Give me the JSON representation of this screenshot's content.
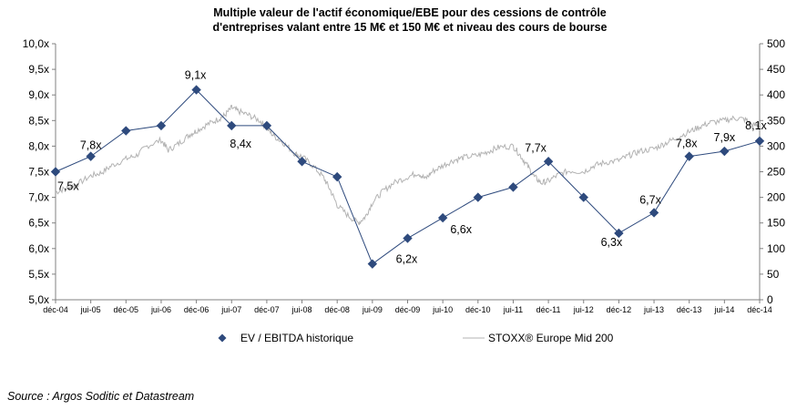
{
  "chart_data": {
    "type": "line",
    "title_line1": "Multiple valeur de l'actif économique/EBE pour des cessions de contrôle",
    "title_line2": "d'entreprises valant entre 15 M€ et 150 M€ et niveau des cours de bourse",
    "x_categories": [
      "déc-04",
      "jui-05",
      "déc-05",
      "jui-06",
      "déc-06",
      "jui-07",
      "déc-07",
      "jui-08",
      "déc-08",
      "jui-09",
      "déc-09",
      "jui-10",
      "déc-10",
      "jui-11",
      "déc-11",
      "jui-12",
      "déc-12",
      "jui-13",
      "déc-13",
      "jui-14",
      "déc-14"
    ],
    "y_left": {
      "min": 5.0,
      "max": 10.0,
      "step": 0.5,
      "ticks": [
        "5,0x",
        "5,5x",
        "6,0x",
        "6,5x",
        "7,0x",
        "7,5x",
        "8,0x",
        "8,5x",
        "9,0x",
        "9,5x",
        "10,0x"
      ]
    },
    "y_right": {
      "min": 0,
      "max": 500,
      "step": 50,
      "ticks": [
        "0",
        "50",
        "100",
        "150",
        "200",
        "250",
        "300",
        "350",
        "400",
        "450",
        "500"
      ]
    },
    "series": [
      {
        "name": "EV / EBITDA historique",
        "axis": "left",
        "color": "#2e4a7d",
        "marker": "diamond",
        "values": [
          7.5,
          7.8,
          8.3,
          8.4,
          9.1,
          8.4,
          8.4,
          7.7,
          7.4,
          5.7,
          6.2,
          6.6,
          7.0,
          7.2,
          7.7,
          7.0,
          6.3,
          6.7,
          7.8,
          7.9,
          8.1
        ],
        "data_labels": [
          {
            "index": 0,
            "text": "7,5x"
          },
          {
            "index": 1,
            "text": "7,8x"
          },
          {
            "index": 4,
            "text": "9,1x"
          },
          {
            "index": 5,
            "text": "8,4x"
          },
          {
            "index": 10,
            "text": "6,2x"
          },
          {
            "index": 11,
            "text": "6,6x"
          },
          {
            "index": 14,
            "text": "7,7x"
          },
          {
            "index": 16,
            "text": "6,3x"
          },
          {
            "index": 17,
            "text": "6,7x"
          },
          {
            "index": 18,
            "text": "7,8x"
          },
          {
            "index": 19,
            "text": "7,9x"
          },
          {
            "index": 20,
            "text": "8,1x"
          }
        ]
      },
      {
        "name": "STOXX® Europe Mid 200",
        "axis": "right",
        "color": "#b3b3b3",
        "anchors": [
          [
            0,
            210
          ],
          [
            0.3,
            218
          ],
          [
            0.6,
            225
          ],
          [
            1,
            242
          ],
          [
            1.3,
            248
          ],
          [
            1.6,
            262
          ],
          [
            2,
            275
          ],
          [
            2.3,
            282
          ],
          [
            2.6,
            300
          ],
          [
            3,
            312
          ],
          [
            3.2,
            292
          ],
          [
            3.5,
            305
          ],
          [
            3.8,
            322
          ],
          [
            4,
            330
          ],
          [
            4.3,
            342
          ],
          [
            4.6,
            352
          ],
          [
            4.8,
            360
          ],
          [
            5,
            375
          ],
          [
            5.2,
            368
          ],
          [
            5.5,
            360
          ],
          [
            5.8,
            350
          ],
          [
            6,
            335
          ],
          [
            6.2,
            320
          ],
          [
            6.5,
            305
          ],
          [
            6.8,
            285
          ],
          [
            7,
            280
          ],
          [
            7.3,
            262
          ],
          [
            7.6,
            240
          ],
          [
            7.8,
            215
          ],
          [
            8,
            185
          ],
          [
            8.3,
            165
          ],
          [
            8.6,
            150
          ],
          [
            8.8,
            162
          ],
          [
            9,
            190
          ],
          [
            9.3,
            212
          ],
          [
            9.6,
            228
          ],
          [
            10,
            240
          ],
          [
            10.3,
            248
          ],
          [
            10.5,
            236
          ],
          [
            10.7,
            250
          ],
          [
            11,
            262
          ],
          [
            11.3,
            272
          ],
          [
            11.6,
            278
          ],
          [
            12,
            282
          ],
          [
            12.3,
            290
          ],
          [
            12.6,
            298
          ],
          [
            13,
            300
          ],
          [
            13.2,
            282
          ],
          [
            13.4,
            262
          ],
          [
            13.6,
            240
          ],
          [
            13.8,
            228
          ],
          [
            14,
            232
          ],
          [
            14.3,
            245
          ],
          [
            14.6,
            252
          ],
          [
            15,
            250
          ],
          [
            15.3,
            262
          ],
          [
            15.6,
            268
          ],
          [
            16,
            272
          ],
          [
            16.3,
            282
          ],
          [
            16.6,
            290
          ],
          [
            17,
            295
          ],
          [
            17.3,
            305
          ],
          [
            17.6,
            315
          ],
          [
            18,
            328
          ],
          [
            18.3,
            338
          ],
          [
            18.6,
            346
          ],
          [
            19,
            350
          ],
          [
            19.3,
            355
          ],
          [
            19.6,
            352
          ],
          [
            19.8,
            340
          ],
          [
            20,
            342
          ]
        ]
      }
    ],
    "legend_position": "bottom",
    "grid": false
  },
  "source": "Source : Argos Soditic et Datastream"
}
